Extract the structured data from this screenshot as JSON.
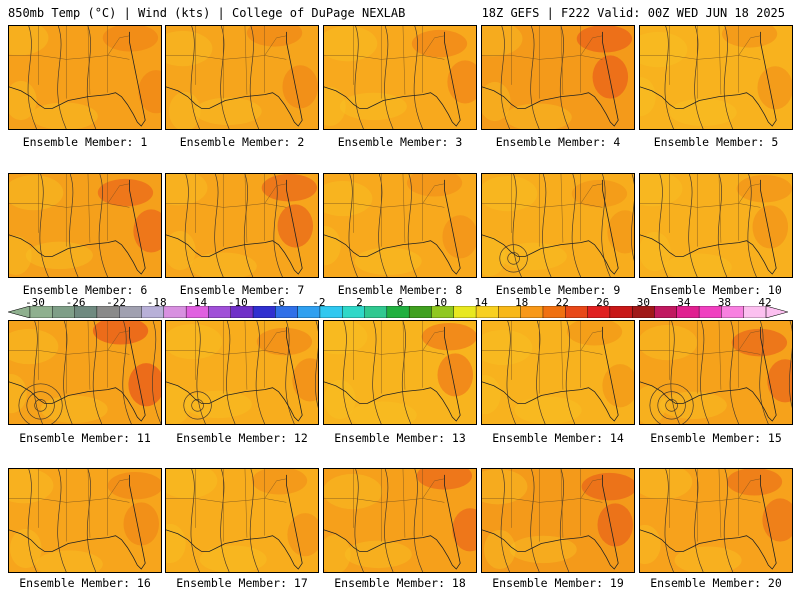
{
  "header": {
    "left": "850mb Temp (°C) | Wind (kts) | College of DuPage NEXLAB",
    "right": "18Z GEFS | F222 Valid: 00Z WED JUN 18 2025"
  },
  "panels": [
    {
      "label": "Ensemble Member: 1",
      "hue": "#f6a01b",
      "hot": "#ee7d14",
      "contours": 1
    },
    {
      "label": "Ensemble Member: 2",
      "hue": "#f6a51c",
      "hot": "#ee8016",
      "contours": 1
    },
    {
      "label": "Ensemble Member: 3",
      "hue": "#f8a91d",
      "hot": "#ee7a15",
      "contours": 1
    },
    {
      "label": "Ensemble Member: 4",
      "hue": "#f49a1a",
      "hot": "#e84e1a",
      "contours": 1
    },
    {
      "label": "Ensemble Member: 5",
      "hue": "#f8b21e",
      "hot": "#f08a17",
      "contours": 1
    },
    {
      "label": "Ensemble Member: 6",
      "hue": "#f5a01b",
      "hot": "#e8561a",
      "contours": 1
    },
    {
      "label": "Ensemble Member: 7",
      "hue": "#f7a51c",
      "hot": "#e65319",
      "contours": 2
    },
    {
      "label": "Ensemble Member: 8",
      "hue": "#f8a91d",
      "hot": "#f08a17",
      "contours": 1
    },
    {
      "label": "Ensemble Member: 9",
      "hue": "#f8ad1d",
      "hot": "#f09016",
      "contours": 3
    },
    {
      "label": "Ensemble Member: 10",
      "hue": "#f8b01e",
      "hot": "#f08a17",
      "contours": 2
    },
    {
      "label": "Ensemble Member: 11",
      "hue": "#f6a21b",
      "hot": "#e4401a",
      "contours": 4
    },
    {
      "label": "Ensemble Member: 12",
      "hue": "#f8ad1d",
      "hot": "#ee8016",
      "contours": 3
    },
    {
      "label": "Ensemble Member: 13",
      "hue": "#f8b41e",
      "hot": "#ec6a18",
      "contours": 1
    },
    {
      "label": "Ensemble Member: 14",
      "hue": "#f8b21e",
      "hot": "#f09016",
      "contours": 1
    },
    {
      "label": "Ensemble Member: 15",
      "hue": "#f6a21b",
      "hot": "#e65319",
      "contours": 4
    },
    {
      "label": "Ensemble Member: 16",
      "hue": "#f7a51c",
      "hot": "#ee8016",
      "contours": 1
    },
    {
      "label": "Ensemble Member: 17",
      "hue": "#f8ad1d",
      "hot": "#f08a17",
      "contours": 1
    },
    {
      "label": "Ensemble Member: 18",
      "hue": "#f6a01b",
      "hot": "#e8561a",
      "contours": 1
    },
    {
      "label": "Ensemble Member: 19",
      "hue": "#f49a1a",
      "hot": "#e65319",
      "contours": 1
    },
    {
      "label": "Ensemble Member: 20",
      "hue": "#f7a21c",
      "hot": "#ea6418",
      "contours": 1
    }
  ],
  "colorbar": {
    "ticks": [
      "-30",
      "-26",
      "-22",
      "-18",
      "-14",
      "-10",
      "-6",
      "-2",
      "2",
      "6",
      "10",
      "14",
      "18",
      "22",
      "26",
      "30",
      "34",
      "38",
      "42"
    ],
    "colors": [
      "#8fb08f",
      "#7f9f88",
      "#6f8a80",
      "#8a8a8a",
      "#a0a0b0",
      "#b8b0d8",
      "#d890e0",
      "#e060e0",
      "#a050d8",
      "#7030c8",
      "#3030d0",
      "#3070e8",
      "#30a0f0",
      "#30c8f0",
      "#30d8c8",
      "#30c890",
      "#20b040",
      "#40a020",
      "#90c820",
      "#e8e820",
      "#f8d020",
      "#f8b818",
      "#f89818",
      "#f07010",
      "#e84818",
      "#e02020",
      "#c81818",
      "#a01818",
      "#c01860",
      "#e02090",
      "#f040c0",
      "#f880e0",
      "#fcc0f0"
    ]
  }
}
